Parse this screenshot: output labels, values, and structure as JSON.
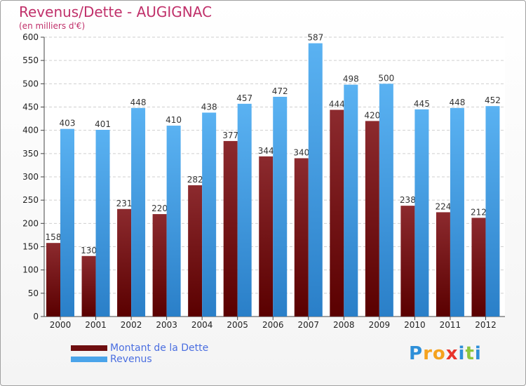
{
  "header": {
    "title": "Revenus/Dette - AUGIGNAC",
    "subtitle": "(en milliers d'€)"
  },
  "chart_data": {
    "type": "bar",
    "categories": [
      "2000",
      "2001",
      "2002",
      "2003",
      "2004",
      "2005",
      "2006",
      "2007",
      "2008",
      "2009",
      "2010",
      "2011",
      "2012"
    ],
    "series": [
      {
        "name": "Montant de la Dette",
        "values": [
          158,
          130,
          231,
          220,
          282,
          377,
          344,
          340,
          444,
          420,
          238,
          224,
          212
        ],
        "color": "#7a1418"
      },
      {
        "name": "Revenus",
        "values": [
          403,
          401,
          448,
          410,
          438,
          457,
          472,
          587,
          498,
          500,
          445,
          448,
          452
        ],
        "color": "#4aa4ea"
      }
    ],
    "ylim": [
      0,
      600
    ],
    "yticks": [
      0,
      50,
      100,
      150,
      200,
      250,
      300,
      350,
      400,
      450,
      500,
      550,
      600
    ],
    "grid": true,
    "legend_position": "bottom-left"
  },
  "legend": {
    "items": [
      {
        "label": "Montant de la Dette",
        "color": "#6e0e10"
      },
      {
        "label": "Revenus",
        "color": "#4aa4ea"
      }
    ]
  },
  "logo": {
    "letters": [
      "P",
      "r",
      "o",
      "x",
      "i",
      "t",
      "i"
    ],
    "colors": [
      "#2e8fd8",
      "#f5a21e",
      "#f5a21e",
      "#e8342b",
      "#2e8fd8",
      "#8cc63f",
      "#2e8fd8"
    ]
  }
}
